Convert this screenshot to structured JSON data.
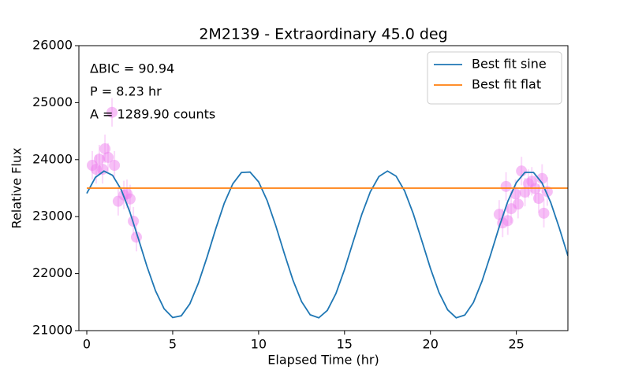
{
  "chart_data": {
    "type": "scatter",
    "title": "2M2139 - Extraordinary 45.0 deg",
    "xlabel": "Elapsed Time (hr)",
    "ylabel": "Relative Flux",
    "annotations": [
      "ΔBIC = 90.94",
      "P = 8.23 hr",
      "A = 1289.90 counts"
    ],
    "xlim": [
      -0.46,
      28
    ],
    "ylim": [
      21000,
      26000
    ],
    "xticks": [
      0,
      5,
      10,
      15,
      20,
      25
    ],
    "yticks": [
      21000,
      22000,
      23000,
      24000,
      25000,
      26000
    ],
    "legend": "upper right",
    "series": [
      {
        "type": "errorbar",
        "color": "#ee82ee",
        "x": [
          0.32,
          0.55,
          0.73,
          0.92,
          1.06,
          1.24,
          1.47,
          1.61,
          1.83,
          2.16,
          2.34,
          2.52,
          2.71,
          2.89,
          24.0,
          24.2,
          24.4,
          24.5,
          24.7,
          24.95,
          25.1,
          25.3,
          25.5,
          25.7,
          25.9,
          26.1,
          26.3,
          26.5,
          26.6,
          26.8
        ],
        "values": [
          23900,
          23830,
          24010,
          23830,
          24190,
          24040,
          24830,
          23900,
          23270,
          23380,
          23400,
          23310,
          22920,
          22640,
          23040,
          22890,
          23530,
          22930,
          23140,
          23400,
          23220,
          23800,
          23430,
          23580,
          23620,
          23490,
          23320,
          23670,
          23060,
          23440
        ],
        "errors": [
          250,
          250,
          250,
          250,
          250,
          250,
          250,
          250,
          250,
          250,
          250,
          250,
          250,
          250,
          250,
          250,
          250,
          250,
          250,
          250,
          250,
          250,
          250,
          250,
          250,
          250,
          250,
          250,
          250,
          250
        ]
      },
      {
        "type": "line",
        "name": "Best fit sine",
        "color": "#1f77b4",
        "x": [
          0,
          0.5,
          1,
          1.5,
          2,
          2.5,
          3,
          3.5,
          4,
          4.5,
          5,
          5.5,
          6,
          6.5,
          7,
          7.5,
          8,
          8.5,
          9,
          9.5,
          10,
          10.5,
          11,
          11.5,
          12,
          12.5,
          13,
          13.5,
          14,
          14.5,
          15,
          15.5,
          16,
          16.5,
          17,
          17.5,
          18,
          18.5,
          19,
          19.5,
          20,
          20.5,
          21,
          21.5,
          22,
          22.5,
          23,
          23.5,
          24,
          24.5,
          25,
          25.5,
          26,
          26.5,
          27,
          27.5,
          28
        ],
        "values": [
          23407,
          23688,
          23799,
          23725,
          23475,
          23087,
          22616,
          22129,
          21699,
          21383,
          21230,
          21260,
          21471,
          21836,
          22291,
          22781,
          23234,
          23577,
          23774,
          23782,
          23610,
          23280,
          22839,
          22350,
          21885,
          21510,
          21278,
          21224,
          21355,
          21650,
          22073,
          22557,
          23035,
          23435,
          23703,
          23800,
          23711,
          23449,
          23052,
          22576,
          22092,
          21668,
          21365,
          21225,
          21273,
          21492,
          21867,
          22329,
          22819,
          23266,
          23598,
          23778,
          23775,
          23589,
          23248,
          22801,
          22312
        ]
      },
      {
        "type": "line",
        "name": "Best fit flat",
        "color": "#ff7f0e",
        "x": [
          0,
          28
        ],
        "values": [
          23500,
          23500
        ]
      }
    ]
  }
}
